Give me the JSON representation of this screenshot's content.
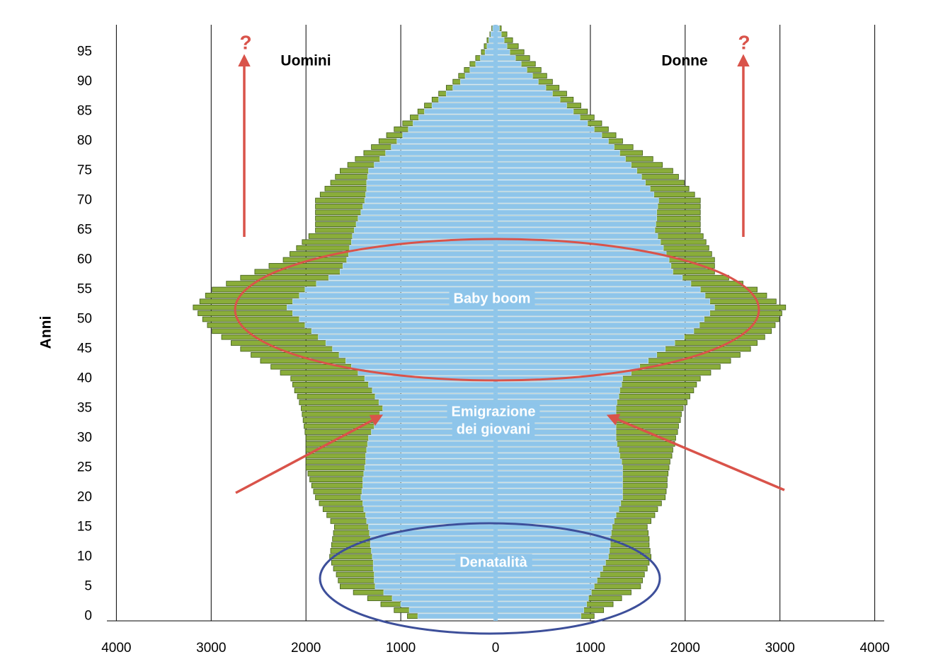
{
  "chart_data": {
    "type": "pyramid",
    "ylabel": "Anni",
    "xlim": [
      -4100,
      4100
    ],
    "xticks": [
      {
        "value": -4000,
        "label": "4000"
      },
      {
        "value": -3000,
        "label": "3000"
      },
      {
        "value": -2000,
        "label": "2000"
      },
      {
        "value": -1000,
        "label": "1000"
      },
      0,
      1000,
      2000,
      3000,
      4000
    ],
    "ylim": [
      -0.8,
      99.6
    ],
    "yticks": [
      0,
      5,
      10,
      15,
      20,
      25,
      30,
      35,
      40,
      45,
      50,
      55,
      60,
      65,
      70,
      75,
      80,
      85,
      90,
      95
    ],
    "grid": true,
    "ages": [
      0,
      1,
      2,
      3,
      4,
      5,
      6,
      7,
      8,
      9,
      10,
      11,
      12,
      13,
      14,
      15,
      16,
      17,
      18,
      19,
      20,
      21,
      22,
      23,
      24,
      25,
      26,
      27,
      28,
      29,
      30,
      31,
      32,
      33,
      34,
      35,
      36,
      37,
      38,
      39,
      40,
      41,
      42,
      43,
      44,
      45,
      46,
      47,
      48,
      49,
      50,
      51,
      52,
      53,
      54,
      55,
      56,
      57,
      58,
      59,
      60,
      61,
      62,
      63,
      64,
      65,
      66,
      67,
      68,
      69,
      70,
      71,
      72,
      73,
      74,
      75,
      76,
      77,
      78,
      79,
      80,
      81,
      82,
      83,
      84,
      85,
      86,
      87,
      88,
      89,
      90,
      91,
      92,
      93,
      94,
      95,
      96,
      97,
      98,
      99
    ],
    "series": [
      {
        "name": "Uomini",
        "side": "left",
        "color": "#8aad3a",
        "inner_color": "#8ec5ea",
        "values": [
          930,
          1070,
          1210,
          1350,
          1500,
          1640,
          1660,
          1680,
          1710,
          1730,
          1750,
          1740,
          1730,
          1720,
          1710,
          1700,
          1740,
          1780,
          1820,
          1860,
          1900,
          1920,
          1940,
          1960,
          1980,
          2000,
          2000,
          2000,
          2000,
          2000,
          2000,
          2010,
          2020,
          2030,
          2040,
          2050,
          2070,
          2090,
          2120,
          2140,
          2160,
          2270,
          2370,
          2480,
          2580,
          2690,
          2790,
          2890,
          2990,
          3040,
          3090,
          3140,
          3190,
          3120,
          3060,
          2990,
          2840,
          2690,
          2540,
          2390,
          2240,
          2170,
          2100,
          2040,
          1970,
          1900,
          1900,
          1900,
          1900,
          1900,
          1900,
          1850,
          1800,
          1740,
          1690,
          1640,
          1560,
          1480,
          1390,
          1310,
          1230,
          1150,
          1070,
          980,
          900,
          820,
          750,
          670,
          600,
          520,
          450,
          390,
          330,
          270,
          210,
          150,
          120,
          90,
          60,
          40
        ],
        "inner_values": [
          820,
          910,
          1000,
          1090,
          1180,
          1270,
          1280,
          1280,
          1290,
          1290,
          1300,
          1310,
          1320,
          1320,
          1330,
          1340,
          1360,
          1370,
          1390,
          1400,
          1420,
          1410,
          1400,
          1400,
          1390,
          1380,
          1370,
          1370,
          1360,
          1350,
          1340,
          1310,
          1280,
          1250,
          1220,
          1190,
          1230,
          1270,
          1300,
          1340,
          1380,
          1450,
          1520,
          1580,
          1650,
          1720,
          1790,
          1870,
          1940,
          2010,
          2070,
          2140,
          2200,
          2140,
          2070,
          2010,
          1890,
          1760,
          1640,
          1610,
          1570,
          1550,
          1540,
          1520,
          1510,
          1490,
          1470,
          1450,
          1420,
          1400,
          1380,
          1370,
          1360,
          1360,
          1350,
          1340,
          1280,
          1220,
          1160,
          1100,
          1040,
          980,
          920,
          870,
          810,
          750,
          670,
          600,
          520,
          450,
          370,
          320,
          270,
          210,
          160,
          110,
          90,
          70,
          50,
          30
        ]
      },
      {
        "name": "Donne",
        "side": "right",
        "color": "#8aad3a",
        "inner_color": "#8ec5ea",
        "values": [
          1040,
          1140,
          1240,
          1330,
          1430,
          1530,
          1550,
          1570,
          1600,
          1620,
          1640,
          1630,
          1620,
          1620,
          1610,
          1600,
          1640,
          1680,
          1710,
          1750,
          1790,
          1800,
          1810,
          1810,
          1820,
          1830,
          1840,
          1860,
          1870,
          1890,
          1900,
          1920,
          1930,
          1950,
          1960,
          1980,
          2020,
          2050,
          2090,
          2120,
          2160,
          2270,
          2370,
          2480,
          2580,
          2690,
          2760,
          2840,
          2910,
          2950,
          2990,
          3020,
          3060,
          2960,
          2860,
          2760,
          2610,
          2460,
          2310,
          2310,
          2310,
          2280,
          2250,
          2220,
          2190,
          2160,
          2160,
          2160,
          2160,
          2160,
          2160,
          2100,
          2040,
          1990,
          1930,
          1870,
          1760,
          1660,
          1550,
          1450,
          1340,
          1270,
          1190,
          1120,
          1040,
          970,
          900,
          820,
          750,
          670,
          600,
          540,
          480,
          420,
          360,
          300,
          240,
          180,
          120,
          60
        ],
        "inner_values": [
          900,
          930,
          960,
          980,
          1010,
          1040,
          1070,
          1100,
          1130,
          1160,
          1190,
          1200,
          1210,
          1210,
          1220,
          1230,
          1250,
          1270,
          1300,
          1320,
          1340,
          1340,
          1340,
          1340,
          1340,
          1340,
          1330,
          1310,
          1300,
          1280,
          1270,
          1270,
          1270,
          1270,
          1270,
          1270,
          1280,
          1300,
          1310,
          1330,
          1340,
          1430,
          1520,
          1610,
          1700,
          1790,
          1890,
          1990,
          2090,
          2150,
          2200,
          2260,
          2310,
          2260,
          2210,
          2160,
          2060,
          1970,
          1870,
          1850,
          1830,
          1800,
          1770,
          1740,
          1710,
          1680,
          1690,
          1700,
          1700,
          1710,
          1720,
          1670,
          1630,
          1580,
          1540,
          1490,
          1430,
          1370,
          1310,
          1250,
          1190,
          1120,
          1040,
          970,
          890,
          820,
          750,
          680,
          600,
          530,
          450,
          390,
          330,
          270,
          210,
          150,
          120,
          90,
          60,
          40
        ]
      }
    ],
    "annotations": [
      "Baby boom",
      "Emigrazione",
      "dei giovani",
      "Denatalità",
      "?",
      "?"
    ]
  }
}
